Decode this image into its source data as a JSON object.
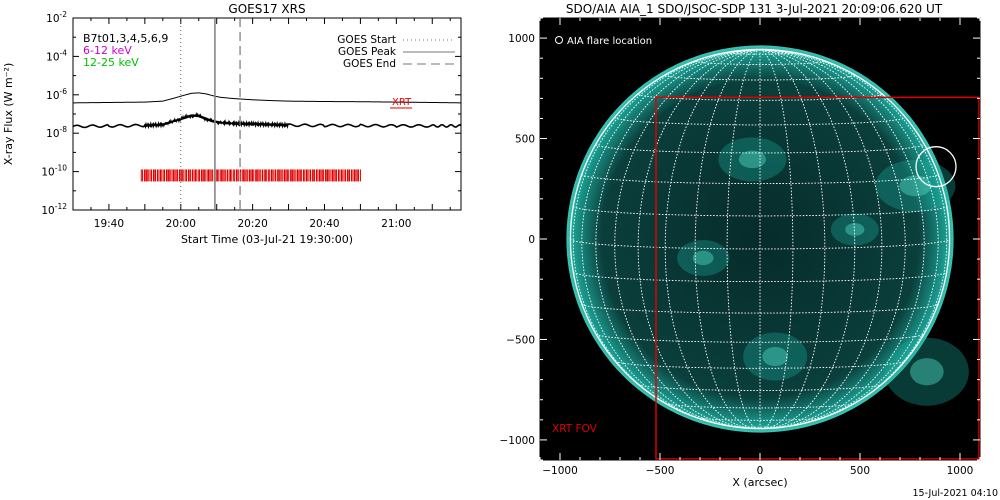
{
  "colors": {
    "xrt": "#e00000",
    "ch_6_12": "#d000d0",
    "ch_12_25": "#00c000",
    "sun_glow": "#1aa89a"
  },
  "chart_data": [
    {
      "type": "line",
      "title": "GOES17 XRS",
      "xlabel": "Start Time (03-Jul-21 19:30:00)",
      "ylabel": "X-ray Flux (W m⁻²)",
      "x_unit": "minutes after 19:30",
      "xlim": [
        0,
        108
      ],
      "ylim_log10": [
        -12,
        -2
      ],
      "y_scale": "log",
      "x_ticks": [
        {
          "value": 10,
          "label": "19:40"
        },
        {
          "value": 30,
          "label": "20:00"
        },
        {
          "value": 50,
          "label": "20:20"
        },
        {
          "value": 70,
          "label": "20:40"
        },
        {
          "value": 90,
          "label": "21:00"
        }
      ],
      "y_ticks": [
        {
          "value": -2,
          "label": "10",
          "exp": "-2"
        },
        {
          "value": -4,
          "label": "10",
          "exp": "-4"
        },
        {
          "value": -6,
          "label": "10",
          "exp": "-6"
        },
        {
          "value": -8,
          "label": "10",
          "exp": "-8"
        },
        {
          "value": -10,
          "label": "10",
          "exp": "-10"
        },
        {
          "value": -12,
          "label": "10",
          "exp": "-12"
        }
      ],
      "series": [
        {
          "name": "",
          "x": [
            0,
            10,
            20,
            25,
            28,
            31,
            33,
            35,
            37,
            39,
            41,
            45,
            50,
            55,
            60,
            70,
            80,
            90,
            100,
            108
          ],
          "log10_y": [
            -6.42,
            -6.4,
            -6.38,
            -6.33,
            -6.18,
            -6.02,
            -5.92,
            -5.9,
            -5.95,
            -6.05,
            -6.13,
            -6.2,
            -6.26,
            -6.3,
            -6.33,
            -6.35,
            -6.36,
            -6.38,
            -6.4,
            -6.42
          ]
        },
        {
          "name": "",
          "x": [
            0,
            10,
            20,
            25,
            28,
            31,
            33,
            35,
            37,
            39,
            41,
            45,
            50,
            55,
            60,
            70,
            80,
            90,
            100,
            108
          ],
          "log10_y": [
            -7.65,
            -7.62,
            -7.6,
            -7.55,
            -7.38,
            -7.2,
            -7.08,
            -7.1,
            -7.25,
            -7.38,
            -7.45,
            -7.5,
            -7.52,
            -7.55,
            -7.58,
            -7.6,
            -7.6,
            -7.62,
            -7.62,
            -7.62
          ]
        }
      ],
      "markers": {
        "goes_start": 30,
        "goes_peak": 39.5,
        "goes_end": 46.5
      },
      "xrt_coverage": {
        "start": 19,
        "end": 80,
        "log10_y": -10.2
      },
      "legend": {
        "placement": "top-right",
        "items": [
          "GOES Start",
          "GOES Peak",
          "GOES End"
        ]
      },
      "channel_labels": {
        "header": "B7t01,3,4,5,6,9",
        "low": "6-12 keV",
        "high": "12-25 keV"
      },
      "xrt_label": "XRT"
    },
    {
      "type": "heatmap",
      "title": "SDO/AIA AIA_1 SDO/JSOC-SDP 131  3-Jul-2021 20:09:06.620 UT",
      "xlabel": "X (arcsec)",
      "ylabel": "",
      "xlim": [
        -1100,
        1100
      ],
      "ylim": [
        -1100,
        1100
      ],
      "x_ticks": [
        -1000,
        -500,
        0,
        500,
        1000
      ],
      "y_ticks": [
        -1000,
        -500,
        0,
        500,
        1000
      ],
      "x_tick_labels": [
        "−1000",
        "−500",
        "0",
        "500",
        "1000"
      ],
      "y_tick_labels": [
        "−1000",
        "−500",
        "0",
        "500",
        "1000"
      ],
      "solar_radius_arcsec": 948,
      "flare_location": {
        "x": 880,
        "y": 360,
        "radius": 100
      },
      "flare_label": "AIA flare location",
      "xrt_fov": {
        "x0": -520,
        "x1": 1100,
        "y0": -1100,
        "y1": 705,
        "label": "XRT FOV"
      },
      "grid": "heliographic 10-degree"
    }
  ],
  "footer": {
    "timestamp": "15-Jul-2021 04:10"
  }
}
